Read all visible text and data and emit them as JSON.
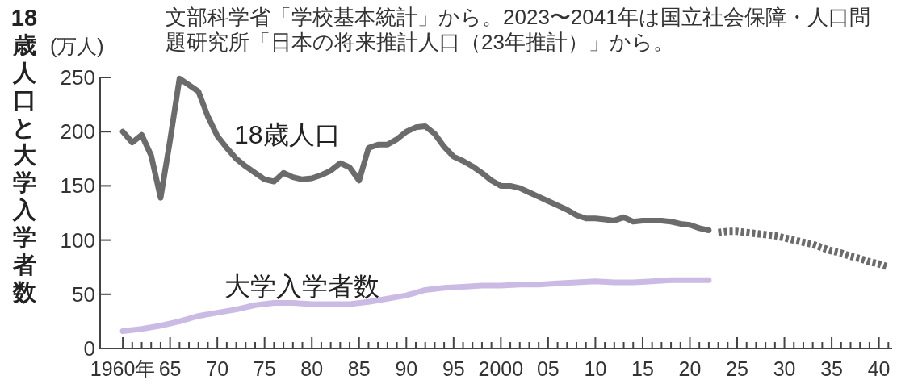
{
  "chart_data": {
    "type": "line",
    "ylabel": "18歳人口と大学入学者数",
    "annotations": [
      "(万人)",
      "文部科学省「学校基本統計」から。2023〜2041年は国立社会保障・人口問題研究所「日本の将来推計人口（23年推計）」から。"
    ],
    "xlim": [
      1957.6,
      2041.4
    ],
    "ylim": [
      0,
      250
    ],
    "yticks": [
      0,
      50,
      100,
      150,
      200,
      250
    ],
    "xticks": [
      {
        "value": 1960,
        "label": "1960年"
      },
      {
        "value": 1961,
        "label": null
      },
      {
        "value": 1962,
        "label": null
      },
      {
        "value": 1963,
        "label": null
      },
      {
        "value": 1964,
        "label": null
      },
      {
        "value": 1965,
        "label": "65"
      },
      {
        "value": 1966,
        "label": null
      },
      {
        "value": 1967,
        "label": null
      },
      {
        "value": 1968,
        "label": null
      },
      {
        "value": 1969,
        "label": null
      },
      {
        "value": 1970,
        "label": "70"
      },
      {
        "value": 1971,
        "label": null
      },
      {
        "value": 1972,
        "label": null
      },
      {
        "value": 1973,
        "label": null
      },
      {
        "value": 1974,
        "label": null
      },
      {
        "value": 1975,
        "label": "75"
      },
      {
        "value": 1976,
        "label": null
      },
      {
        "value": 1977,
        "label": null
      },
      {
        "value": 1978,
        "label": null
      },
      {
        "value": 1979,
        "label": null
      },
      {
        "value": 1980,
        "label": "80"
      },
      {
        "value": 1981,
        "label": null
      },
      {
        "value": 1982,
        "label": null
      },
      {
        "value": 1983,
        "label": null
      },
      {
        "value": 1984,
        "label": null
      },
      {
        "value": 1985,
        "label": "85"
      },
      {
        "value": 1986,
        "label": null
      },
      {
        "value": 1987,
        "label": null
      },
      {
        "value": 1988,
        "label": null
      },
      {
        "value": 1989,
        "label": null
      },
      {
        "value": 1990,
        "label": "90"
      },
      {
        "value": 1991,
        "label": null
      },
      {
        "value": 1992,
        "label": null
      },
      {
        "value": 1993,
        "label": null
      },
      {
        "value": 1994,
        "label": null
      },
      {
        "value": 1995,
        "label": "95"
      },
      {
        "value": 1996,
        "label": null
      },
      {
        "value": 1997,
        "label": null
      },
      {
        "value": 1998,
        "label": null
      },
      {
        "value": 1999,
        "label": null
      },
      {
        "value": 2000,
        "label": "2000"
      },
      {
        "value": 2001,
        "label": null
      },
      {
        "value": 2002,
        "label": null
      },
      {
        "value": 2003,
        "label": null
      },
      {
        "value": 2004,
        "label": null
      },
      {
        "value": 2005,
        "label": "05"
      },
      {
        "value": 2006,
        "label": null
      },
      {
        "value": 2007,
        "label": null
      },
      {
        "value": 2008,
        "label": null
      },
      {
        "value": 2009,
        "label": null
      },
      {
        "value": 2010,
        "label": "10"
      },
      {
        "value": 2011,
        "label": null
      },
      {
        "value": 2012,
        "label": null
      },
      {
        "value": 2013,
        "label": null
      },
      {
        "value": 2014,
        "label": null
      },
      {
        "value": 2015,
        "label": "15"
      },
      {
        "value": 2016,
        "label": null
      },
      {
        "value": 2017,
        "label": null
      },
      {
        "value": 2018,
        "label": null
      },
      {
        "value": 2019,
        "label": null
      },
      {
        "value": 2020,
        "label": "20"
      },
      {
        "value": 2021,
        "label": null
      },
      {
        "value": 2022,
        "label": null
      },
      {
        "value": 2023,
        "label": null
      },
      {
        "value": 2024,
        "label": null
      },
      {
        "value": 2025,
        "label": "25"
      },
      {
        "value": 2026,
        "label": null
      },
      {
        "value": 2027,
        "label": null
      },
      {
        "value": 2028,
        "label": null
      },
      {
        "value": 2029,
        "label": null
      },
      {
        "value": 2030,
        "label": "30"
      },
      {
        "value": 2031,
        "label": null
      },
      {
        "value": 2032,
        "label": null
      },
      {
        "value": 2033,
        "label": null
      },
      {
        "value": 2034,
        "label": null
      },
      {
        "value": 2035,
        "label": "35"
      },
      {
        "value": 2036,
        "label": null
      },
      {
        "value": 2037,
        "label": null
      },
      {
        "value": 2038,
        "label": null
      },
      {
        "value": 2039,
        "label": null
      },
      {
        "value": 2040,
        "label": "40"
      },
      {
        "value": 2041,
        "label": null
      }
    ],
    "series": [
      {
        "name": "18歳人口",
        "color": "#6b6b6b",
        "line_style": "solid",
        "x": [
          1960,
          1961,
          1962,
          1963,
          1964,
          1965,
          1966,
          1967,
          1968,
          1969,
          1970,
          1971,
          1972,
          1973,
          1974,
          1975,
          1976,
          1977,
          1978,
          1979,
          1980,
          1981,
          1982,
          1983,
          1984,
          1985,
          1986,
          1987,
          1988,
          1989,
          1990,
          1991,
          1992,
          1993,
          1994,
          1995,
          1996,
          1997,
          1998,
          1999,
          2000,
          2001,
          2002,
          2003,
          2004,
          2005,
          2006,
          2007,
          2008,
          2009,
          2010,
          2011,
          2012,
          2013,
          2014,
          2015,
          2016,
          2017,
          2018,
          2019,
          2020,
          2021,
          2022
        ],
        "values": [
          200,
          190,
          197,
          178,
          139,
          192,
          249,
          243,
          237,
          214,
          196,
          185,
          175,
          168,
          162,
          156,
          154,
          162,
          158,
          156,
          157,
          160,
          164,
          171,
          167,
          155,
          185,
          188,
          188,
          193,
          200,
          204,
          205,
          198,
          186,
          177,
          173,
          168,
          162,
          155,
          150,
          150,
          148,
          144,
          140,
          136,
          132,
          128,
          123,
          120,
          120,
          119,
          118,
          121,
          117,
          118,
          118,
          118,
          117,
          115,
          114,
          111,
          109
        ]
      },
      {
        "color": "#6b6b6b",
        "line_style": "dashed",
        "x": [
          2023,
          2024,
          2025,
          2026,
          2027,
          2028,
          2029,
          2030,
          2031,
          2032,
          2033,
          2034,
          2035,
          2036,
          2037,
          2038,
          2039,
          2040,
          2041
        ],
        "values": [
          107,
          108,
          108,
          107,
          106,
          105,
          104,
          102,
          100,
          98,
          96,
          93,
          90,
          88,
          85,
          83,
          80,
          78,
          75
        ]
      },
      {
        "name": "大学入学者数",
        "color": "#cbbbe4",
        "line_style": "solid",
        "x": [
          1960,
          1962,
          1964,
          1966,
          1968,
          1970,
          1972,
          1974,
          1976,
          1978,
          1980,
          1982,
          1984,
          1986,
          1988,
          1990,
          1992,
          1994,
          1996,
          1998,
          2000,
          2002,
          2004,
          2006,
          2008,
          2010,
          2012,
          2014,
          2016,
          2018,
          2020,
          2022
        ],
        "values": [
          16,
          18,
          21,
          25,
          30,
          33,
          36,
          40,
          42,
          42,
          41,
          41,
          41,
          43,
          46,
          49,
          54,
          56,
          57,
          58,
          58,
          59,
          59,
          60,
          61,
          62,
          61,
          61,
          62,
          63,
          63,
          63
        ]
      }
    ]
  }
}
